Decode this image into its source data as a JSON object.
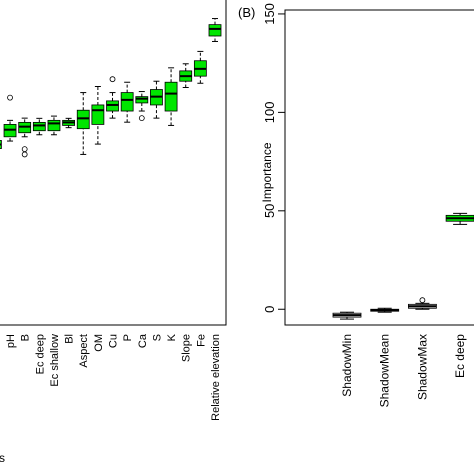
{
  "chart_data": [
    {
      "type": "box",
      "x_label": "s",
      "ylim": [
        -8,
        152
      ],
      "categories": [
        null,
        "pH",
        "B",
        "Ec deep",
        "Ec shallow",
        "Bl",
        "Aspect",
        "OM",
        "Cu",
        "P",
        "Ca",
        "S",
        "K",
        "Slope",
        "Fe",
        "Relative elevation"
      ],
      "colors": [
        "#00e600",
        "#00e600",
        "#00e600",
        "#00e600",
        "#00e600",
        "#00e600",
        "#00e600",
        "#00e600",
        "#00e600",
        "#00e600",
        "#00e600",
        "#00e600",
        "#00e600",
        "#00e600",
        "#00e600",
        "#00e600"
      ],
      "boxes": [
        {
          "min": 77,
          "q1": 79,
          "median": 81,
          "q3": 83,
          "max": 85
        },
        {
          "min": 82.7,
          "q1": 84.8,
          "median": 88.3,
          "q3": 90.9,
          "max": 92.9,
          "outliers": [
            104.1
          ]
        },
        {
          "min": 84.8,
          "q1": 86.8,
          "median": 89.8,
          "q3": 91.9,
          "max": 94,
          "outliers": [
            78.7,
            76.1
          ]
        },
        {
          "min": 85.8,
          "q1": 87.8,
          "median": 90.4,
          "q3": 91.9,
          "max": 93.9
        },
        {
          "min": 85.8,
          "q1": 87.8,
          "median": 91.4,
          "q3": 92.9,
          "max": 95
        },
        {
          "min": 89.3,
          "q1": 90.4,
          "median": 91.9,
          "q3": 92.9,
          "max": 93.9
        },
        {
          "min": 76.1,
          "q1": 88.8,
          "median": 93.9,
          "q3": 97.9,
          "max": 106.6
        },
        {
          "min": 81.2,
          "q1": 90.9,
          "median": 97.9,
          "q3": 100.5,
          "max": 109.6
        },
        {
          "min": 94,
          "q1": 97.5,
          "median": 100.5,
          "q3": 102.5,
          "max": 106.6,
          "outliers": [
            113.2
          ]
        },
        {
          "min": 92,
          "q1": 97.5,
          "median": 103,
          "q3": 106.6,
          "max": 111.7
        },
        {
          "min": 97.5,
          "q1": 101.5,
          "median": 103.6,
          "q3": 104.6,
          "max": 107.1,
          "outliers": [
            94
          ]
        },
        {
          "min": 94,
          "q1": 100.5,
          "median": 104.6,
          "q3": 108.1,
          "max": 112.2
        },
        {
          "min": 90.4,
          "q1": 97.5,
          "median": 106.1,
          "q3": 111.7,
          "max": 118.8
        },
        {
          "min": 109.1,
          "q1": 112.2,
          "median": 114.7,
          "q3": 117.3,
          "max": 120.8
        },
        {
          "min": 111.2,
          "q1": 114.7,
          "median": 118.3,
          "q3": 122.3,
          "max": 126.9
        },
        {
          "min": 131.8,
          "q1": 134.5,
          "median": 138,
          "q3": 140.1,
          "max": 143.1
        }
      ]
    },
    {
      "type": "box",
      "panel_label": "(B)",
      "y_label": "Importance",
      "ylim": [
        -8,
        152
      ],
      "yticks": [
        0,
        50,
        100,
        150
      ],
      "categories": [
        "ShadowMin",
        "ShadowMean",
        "ShadowMax",
        "Ec deep"
      ],
      "colors": [
        "#d9d9d9",
        "#d9d9d9",
        "#d9d9d9",
        "#00e600"
      ],
      "boxes": [
        {
          "min": -5,
          "q1": -4,
          "median": -3,
          "q3": -2,
          "max": -1.5
        },
        {
          "min": -1.5,
          "q1": -1,
          "median": -0.5,
          "q3": 0,
          "max": 0.5
        },
        {
          "min": 0,
          "q1": 0.5,
          "median": 1.5,
          "q3": 2.5,
          "max": 3,
          "outliers": [
            4.6
          ]
        },
        {
          "min": 43.1,
          "q1": 44.7,
          "median": 46.2,
          "q3": 47.7,
          "max": 48.7
        }
      ]
    }
  ]
}
